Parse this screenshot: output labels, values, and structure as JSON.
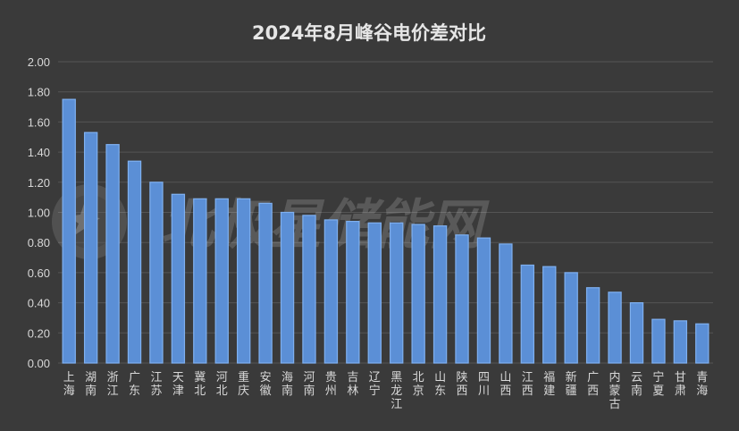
{
  "colors": {
    "background": "#3a3a3a",
    "bar_fill": "#5b8fd6",
    "bar_edge": "#7fb0f0",
    "grid": "#555555",
    "text": "#d8d8d8"
  },
  "watermark": {
    "text": "北极星储能网",
    "icon": "star-logo-icon"
  },
  "chart_data": {
    "type": "bar",
    "title": "2024年8月峰谷电价差对比",
    "xlabel": "",
    "ylabel": "",
    "ylim": [
      0,
      2
    ],
    "yticks": [
      "0.00",
      "0.20",
      "0.40",
      "0.60",
      "0.80",
      "1.00",
      "1.20",
      "1.40",
      "1.60",
      "1.80",
      "2.00"
    ],
    "grid": true,
    "legend": "none",
    "categories": [
      "上海",
      "湖南",
      "浙江",
      "广东",
      "江苏",
      "天津",
      "冀北",
      "河北",
      "重庆",
      "安徽",
      "海南",
      "河南",
      "贵州",
      "吉林",
      "辽宁",
      "黑龙江",
      "北京",
      "山东",
      "陕西",
      "四川",
      "山西",
      "江西",
      "福建",
      "新疆",
      "广西",
      "内蒙古",
      "云南",
      "宁夏",
      "甘肃",
      "青海"
    ],
    "values": [
      1.75,
      1.53,
      1.45,
      1.34,
      1.2,
      1.12,
      1.09,
      1.09,
      1.09,
      1.06,
      1.0,
      0.98,
      0.95,
      0.94,
      0.93,
      0.93,
      0.92,
      0.91,
      0.85,
      0.83,
      0.79,
      0.65,
      0.64,
      0.6,
      0.5,
      0.47,
      0.4,
      0.29,
      0.28,
      0.26
    ]
  }
}
